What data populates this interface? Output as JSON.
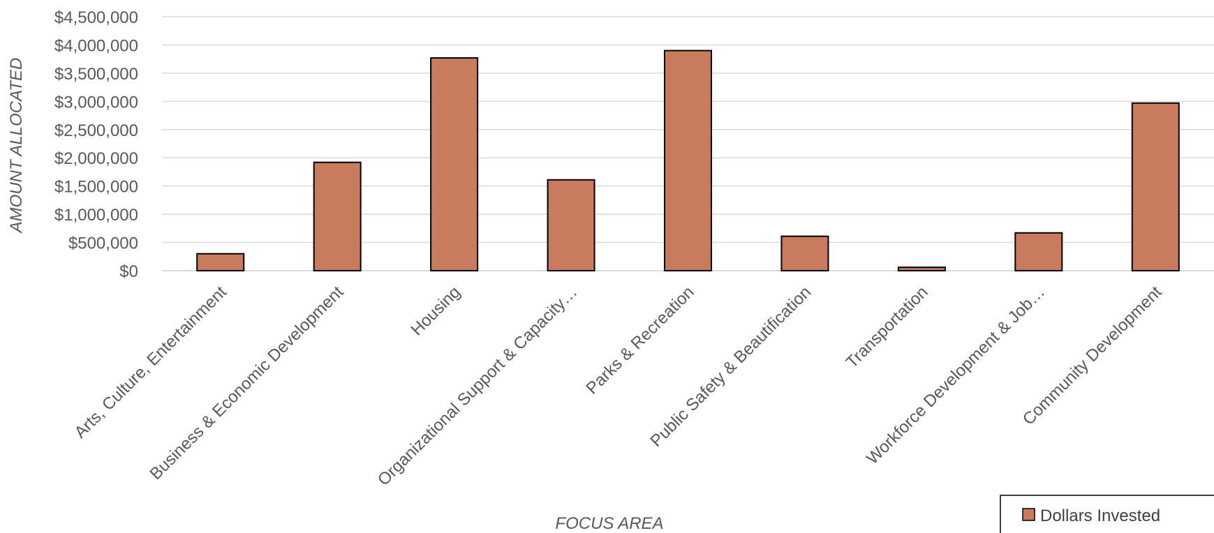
{
  "chart_data": {
    "type": "bar",
    "xlabel": "FOCUS AREA",
    "ylabel": "AMOUNT ALLOCATED",
    "ylim": [
      0,
      4500000
    ],
    "yticks": [
      0,
      500000,
      1000000,
      1500000,
      2000000,
      2500000,
      3000000,
      3500000,
      4000000,
      4500000
    ],
    "ytick_labels": [
      "$0",
      "$500,000",
      "$1,000,000",
      "$1,500,000",
      "$2,000,000",
      "$2,500,000",
      "$3,000,000",
      "$3,500,000",
      "$4,000,000",
      "$4,500,000"
    ],
    "categories": [
      "Arts, Culture, Entertainment",
      "Business & Economic Development",
      "Housing",
      "Organizational Support & Capacity…",
      "Parks & Recreation",
      "Public Safety & Beautification",
      "Transportation",
      "Workforce Development & Job…",
      "Community Development"
    ],
    "series": [
      {
        "name": "Dollars Invested",
        "color": "#C97B5E",
        "values": [
          300000,
          1920000,
          3770000,
          1610000,
          3900000,
          610000,
          60000,
          670000,
          2970000
        ]
      }
    ],
    "grid": true,
    "legend": "bottom-right"
  }
}
